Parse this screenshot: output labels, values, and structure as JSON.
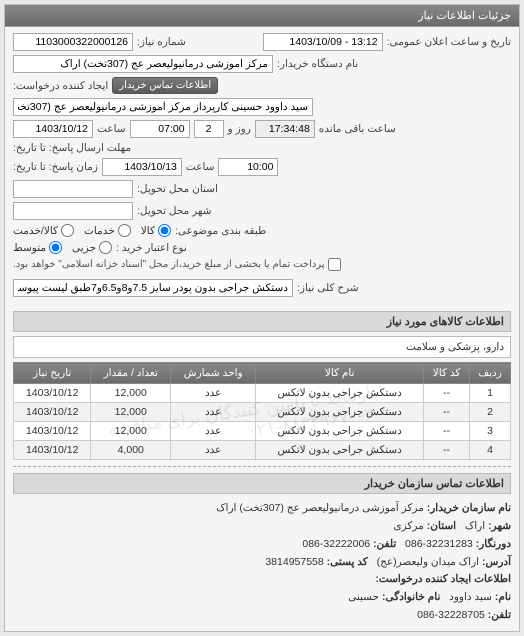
{
  "panel_title": "جزئیات اطلاعات نیاز",
  "header": {
    "number_label": "شماره نیاز:",
    "number_value": "1103000322000126",
    "announce_label": "تاریخ و ساعت اعلان عمومی:",
    "announce_value": "13:12 - 1403/10/09",
    "buyer_label": "نام دستگاه خریدار:",
    "buyer_value": "مرکز آموزشی درمانیولیعصر عج (307تخت) اراک",
    "requester_label": "ایجاد کننده درخواست:",
    "requester_value": "سید داوود حسینی کارپرداز مرکز آموزشی درمانیولیعصر عج (307تخت) اراک",
    "contact_btn": "اطلاعات تماس خریدار",
    "deadline_label": "مهلت ارسال پاسخ: تا تاریخ:",
    "deadline_date": "1403/10/12",
    "deadline_time_label": "ساعت",
    "deadline_time": "07:00",
    "days_value": "2",
    "days_label": "روز و",
    "remain_time": "17:34:48",
    "remain_label": "ساعت باقی مانده",
    "response_label": "زمان پاسخ: تا تاریخ:",
    "response_date": "1403/10/13",
    "response_time": "10:00",
    "province_label": "استان محل تحویل:",
    "city_label": "شهر محل تحویل:",
    "budget_label": "طبقه بندی موضوعی:",
    "radio_kala": "کالا",
    "radio_khadmat": "خدمات",
    "radio_kala_khadmat": "کالا/خدمت",
    "credit_label": "نوع اعتبار خرید :",
    "radio_partial": "جزیی",
    "radio_medium": "متوسط",
    "check_note": "پرداخت تمام یا بخشی از مبلغ خرید،از محل \"اسناد خزانه اسلامی\" خواهد بود.",
    "desc_label": "شرح کلی نیاز:",
    "desc_value": "دستکش جراحی بدون پودر سایز 7.5و8و6.5و7طبق لیست پیوست"
  },
  "goods": {
    "section_title": "اطلاعات کالاهای مورد نیاز",
    "category": "دارو، پزشکی و سلامت",
    "columns": [
      "ردیف",
      "کد کالا",
      "نام کالا",
      "واحد شمارش",
      "تعداد / مقدار",
      "تاریخ نیاز"
    ],
    "rows": [
      [
        "1",
        "--",
        "دستکش جراحی بدون لاتکس",
        "عدد",
        "12,000",
        "1403/10/12"
      ],
      [
        "2",
        "--",
        "دستکش جراحی بدون لاتکس",
        "عدد",
        "12,000",
        "1403/10/12"
      ],
      [
        "3",
        "--",
        "دستکش جراحی بدون لاتکس",
        "عدد",
        "12,000",
        "1403/10/12"
      ],
      [
        "4",
        "--",
        "دستکش جراحی بدون لاتکس",
        "عدد",
        "4,000",
        "1403/10/12"
      ]
    ],
    "watermark": "ارتباط با تامین کنندگان برای مناقصه\n۰۲۱-۸۸۳۴۹۶۷۰-۳"
  },
  "contact": {
    "section_title": "اطلاعات تماس سازمان خریدار",
    "org_label": "نام سازمان خریدار:",
    "org_value": "مرکز آموزشی درمانیولیعصر عج (307تخت) اراک",
    "city_label": "شهر:",
    "city_value": "اراک",
    "province_label": "استان:",
    "province_value": "مرکزی",
    "fax_label": "دورنگار:",
    "fax_value": "32231283-086",
    "tel_label": "تلفن:",
    "tel_value": "32222006-086",
    "addr_label": "آدرس:",
    "addr_value": "اراک میدان ولیعصر(عج)",
    "post_label": "کد پستی:",
    "post_value": "3814957558",
    "req_section": "اطلاعات ایجاد کننده درخواست:",
    "name_label": "نام:",
    "name_value": "سید داوود",
    "family_label": "نام خانوادگی:",
    "family_value": "حسینی",
    "phone_label": "تلفن:",
    "phone_value": "32228705-086"
  }
}
